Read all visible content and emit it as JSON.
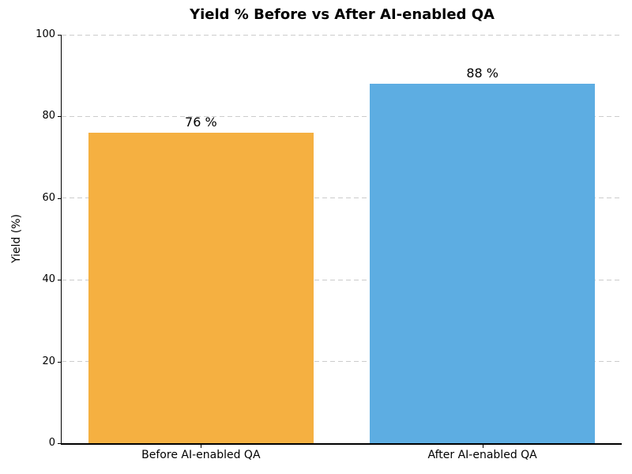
{
  "chart_data": {
    "type": "bar",
    "title": "Yield % Before vs After AI-enabled QA",
    "ylabel": "Yield (%)",
    "xlabel": "",
    "categories": [
      "Before AI-enabled QA",
      "After AI-enabled QA"
    ],
    "values": [
      76,
      88
    ],
    "bar_labels": [
      "76 %",
      "88 %"
    ],
    "bar_colors": [
      "#f5b041",
      "#5dade2"
    ],
    "ylim": [
      0,
      100
    ],
    "yticks": [
      0,
      20,
      40,
      60,
      80,
      100
    ],
    "bar_width_fraction": 0.8,
    "grid": "horizontal dashed",
    "grid_color": "#cccccc",
    "legend": "none"
  }
}
